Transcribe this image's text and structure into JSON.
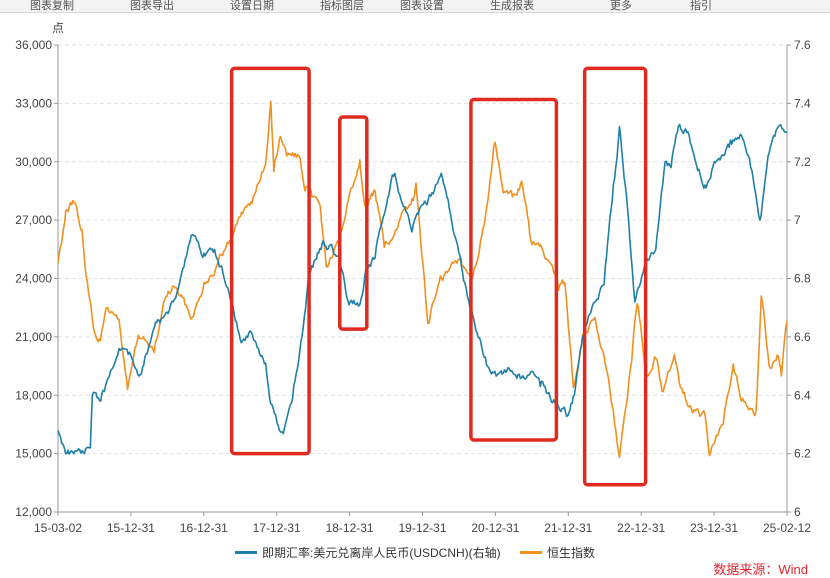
{
  "toolbar": {
    "items": [
      "图表复制",
      "图表导出",
      "设置日期",
      "指标图层",
      "图表设置",
      "生成报表",
      "更多",
      "指引"
    ]
  },
  "chart_data": {
    "type": "line",
    "left_axis_unit": "点",
    "left_ylim": [
      12000,
      36000
    ],
    "left_ticks": [
      "12,000",
      "15,000",
      "18,000",
      "21,000",
      "24,000",
      "27,000",
      "30,000",
      "33,000",
      "36,000"
    ],
    "right_ylim": [
      6,
      7.6
    ],
    "right_ticks": [
      "6",
      "6.2",
      "6.4",
      "6.6",
      "6.8",
      "7",
      "7.2",
      "7.4",
      "7.6"
    ],
    "x_ticks": [
      "15-03-02",
      "15-12-31",
      "16-12-31",
      "17-12-31",
      "18-12-31",
      "19-12-31",
      "20-12-31",
      "21-12-31",
      "22-12-31",
      "23-12-31",
      "25-02-12"
    ],
    "grid": true,
    "legend_position": "bottom",
    "series": [
      {
        "name": "即期汇率:美元兑离岸人民币(USDCNH)(右轴)",
        "axis": "right",
        "color": "#1f7fa6",
        "points": [
          [
            "2015-03-02",
            6.28
          ],
          [
            "2015-04-15",
            6.2
          ],
          [
            "2015-06-30",
            6.21
          ],
          [
            "2015-08-10",
            6.22
          ],
          [
            "2015-08-20",
            6.4
          ],
          [
            "2015-10-01",
            6.38
          ],
          [
            "2015-12-31",
            6.56
          ],
          [
            "2016-02-15",
            6.54
          ],
          [
            "2016-04-15",
            6.47
          ],
          [
            "2016-06-30",
            6.65
          ],
          [
            "2016-09-01",
            6.68
          ],
          [
            "2016-10-15",
            6.75
          ],
          [
            "2016-12-31",
            6.95
          ],
          [
            "2017-02-15",
            6.88
          ],
          [
            "2017-04-15",
            6.89
          ],
          [
            "2017-06-01",
            6.82
          ],
          [
            "2017-07-15",
            6.72
          ],
          [
            "2017-09-01",
            6.58
          ],
          [
            "2017-10-15",
            6.62
          ],
          [
            "2017-12-31",
            6.51
          ],
          [
            "2018-01-20",
            6.39
          ],
          [
            "2018-03-10",
            6.28
          ],
          [
            "2018-04-05",
            6.29
          ],
          [
            "2018-05-15",
            6.39
          ],
          [
            "2018-06-30",
            6.6
          ],
          [
            "2018-08-01",
            6.8
          ],
          [
            "2018-10-15",
            6.93
          ],
          [
            "2018-12-31",
            6.88
          ],
          [
            "2019-02-20",
            6.71
          ],
          [
            "2019-04-15",
            6.71
          ],
          [
            "2019-05-15",
            6.83
          ],
          [
            "2019-06-30",
            6.87
          ],
          [
            "2019-08-15",
            7.02
          ],
          [
            "2019-09-30",
            7.15
          ],
          [
            "2019-12-31",
            6.96
          ],
          [
            "2020-02-01",
            7.02
          ],
          [
            "2020-04-15",
            7.09
          ],
          [
            "2020-05-25",
            7.16
          ],
          [
            "2020-07-15",
            7.0
          ],
          [
            "2020-09-01",
            6.85
          ],
          [
            "2020-10-15",
            6.7
          ],
          [
            "2020-12-31",
            6.53
          ],
          [
            "2021-03-01",
            6.47
          ],
          [
            "2021-04-30",
            6.49
          ],
          [
            "2021-06-30",
            6.46
          ],
          [
            "2021-08-15",
            6.48
          ],
          [
            "2021-10-01",
            6.43
          ],
          [
            "2021-12-31",
            6.36
          ],
          [
            "2022-02-15",
            6.33
          ],
          [
            "2022-03-20",
            6.4
          ],
          [
            "2022-04-30",
            6.6
          ],
          [
            "2022-06-15",
            6.7
          ],
          [
            "2022-08-15",
            6.78
          ],
          [
            "2022-09-30",
            7.12
          ],
          [
            "2022-10-31",
            7.32
          ],
          [
            "2022-12-15",
            7.0
          ],
          [
            "2023-01-15",
            6.72
          ],
          [
            "2023-03-15",
            6.87
          ],
          [
            "2023-04-30",
            6.9
          ],
          [
            "2023-06-15",
            7.2
          ],
          [
            "2023-07-15",
            7.18
          ],
          [
            "2023-08-15",
            7.3
          ],
          [
            "2023-10-01",
            7.3
          ],
          [
            "2023-12-31",
            7.12
          ],
          [
            "2024-02-15",
            7.2
          ],
          [
            "2024-04-30",
            7.25
          ],
          [
            "2024-06-30",
            7.29
          ],
          [
            "2024-08-15",
            7.18
          ],
          [
            "2024-09-30",
            7.0
          ],
          [
            "2024-11-15",
            7.23
          ],
          [
            "2024-12-31",
            7.32
          ],
          [
            "2025-02-12",
            7.3
          ]
        ]
      },
      {
        "name": "恒生指数",
        "axis": "left",
        "color": "#f0901e",
        "points": [
          [
            "2015-03-02",
            24800
          ],
          [
            "2015-04-10",
            27500
          ],
          [
            "2015-05-15",
            28000
          ],
          [
            "2015-06-30",
            26500
          ],
          [
            "2015-07-15",
            24600
          ],
          [
            "2015-08-25",
            21500
          ],
          [
            "2015-09-30",
            20800
          ],
          [
            "2015-10-30",
            22500
          ],
          [
            "2015-12-31",
            21900
          ],
          [
            "2016-02-12",
            18300
          ],
          [
            "2016-03-31",
            20800
          ],
          [
            "2016-04-30",
            21000
          ],
          [
            "2016-06-24",
            20200
          ],
          [
            "2016-08-15",
            22900
          ],
          [
            "2016-09-30",
            23600
          ],
          [
            "2016-12-31",
            22000
          ],
          [
            "2017-02-28",
            23800
          ],
          [
            "2017-04-30",
            24600
          ],
          [
            "2017-06-30",
            25800
          ],
          [
            "2017-08-15",
            27000
          ],
          [
            "2017-10-31",
            28200
          ],
          [
            "2017-12-31",
            29900
          ],
          [
            "2018-01-26",
            33100
          ],
          [
            "2018-02-10",
            29500
          ],
          [
            "2018-03-15",
            31300
          ],
          [
            "2018-04-15",
            30300
          ],
          [
            "2018-06-15",
            30300
          ],
          [
            "2018-07-15",
            28500
          ],
          [
            "2018-09-30",
            27700
          ],
          [
            "2018-10-30",
            24600
          ],
          [
            "2018-12-31",
            25800
          ],
          [
            "2019-02-28",
            28600
          ],
          [
            "2019-04-15",
            30100
          ],
          [
            "2019-05-15",
            27700
          ],
          [
            "2019-06-30",
            28500
          ],
          [
            "2019-08-15",
            25600
          ],
          [
            "2019-10-15",
            26500
          ],
          [
            "2019-12-31",
            28100
          ],
          [
            "2020-01-20",
            28900
          ],
          [
            "2020-03-19",
            21700
          ],
          [
            "2020-05-15",
            23800
          ],
          [
            "2020-06-30",
            24400
          ],
          [
            "2020-08-30",
            25100
          ],
          [
            "2020-10-30",
            24100
          ],
          [
            "2020-12-31",
            27200
          ],
          [
            "2021-02-17",
            31000
          ],
          [
            "2021-03-31",
            28400
          ],
          [
            "2021-05-15",
            28200
          ],
          [
            "2021-06-30",
            29000
          ],
          [
            "2021-08-15",
            25900
          ],
          [
            "2021-10-15",
            25400
          ],
          [
            "2021-12-31",
            23400
          ],
          [
            "2022-01-31",
            23800
          ],
          [
            "2022-03-15",
            18400
          ],
          [
            "2022-04-30",
            21100
          ],
          [
            "2022-06-30",
            22000
          ],
          [
            "2022-08-15",
            20000
          ],
          [
            "2022-09-30",
            17200
          ],
          [
            "2022-10-31",
            14800
          ],
          [
            "2022-12-31",
            19800
          ],
          [
            "2023-01-27",
            22700
          ],
          [
            "2023-03-15",
            19000
          ],
          [
            "2023-04-30",
            19900
          ],
          [
            "2023-05-31",
            18200
          ],
          [
            "2023-07-31",
            20100
          ],
          [
            "2023-08-31",
            18400
          ],
          [
            "2023-10-31",
            17100
          ],
          [
            "2023-12-31",
            17000
          ],
          [
            "2024-01-22",
            14900
          ],
          [
            "2024-03-31",
            16500
          ],
          [
            "2024-05-20",
            19600
          ],
          [
            "2024-06-30",
            17700
          ],
          [
            "2024-09-10",
            17100
          ],
          [
            "2024-10-07",
            23100
          ],
          [
            "2024-11-15",
            19500
          ],
          [
            "2024-12-31",
            20000
          ],
          [
            "2025-01-15",
            19000
          ],
          [
            "2025-02-12",
            21800
          ]
        ]
      }
    ],
    "annotations": [
      {
        "type": "box",
        "color": "#e02a1f",
        "from": "2017-07-15",
        "to": "2018-08-05",
        "y_top": 34800,
        "y_bottom": 15000
      },
      {
        "type": "box",
        "color": "#e02a1f",
        "from": "2019-01-05",
        "to": "2019-05-20",
        "y_top": 32300,
        "y_bottom": 21400
      },
      {
        "type": "box",
        "color": "#e02a1f",
        "from": "2020-10-20",
        "to": "2021-12-20",
        "y_top": 33200,
        "y_bottom": 15700
      },
      {
        "type": "box",
        "color": "#e02a1f",
        "from": "2022-05-10",
        "to": "2023-03-10",
        "y_top": 34800,
        "y_bottom": 13400
      }
    ]
  },
  "source_text": "数据来源：Wind"
}
